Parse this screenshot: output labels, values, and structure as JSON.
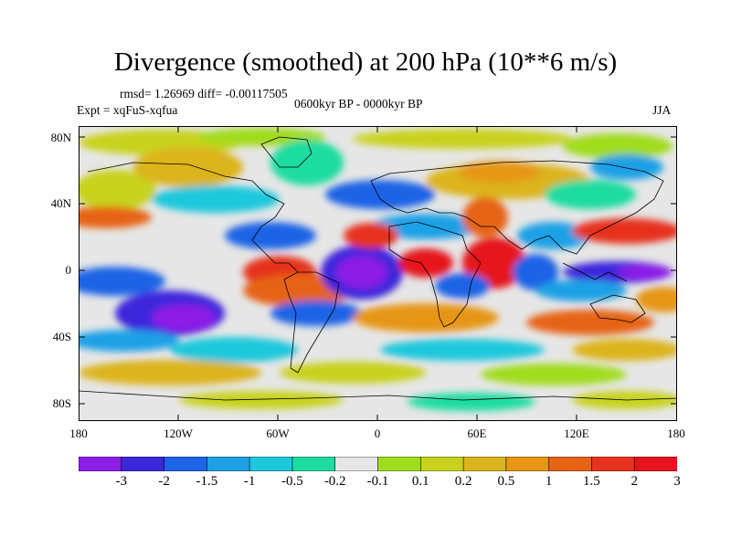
{
  "title": "Divergence (smoothed) at 200 hPa (10**6 m/s)",
  "stats": {
    "rmsd_line": "rmsd= 1.26969 diff= -0.00117505"
  },
  "experiment": "Expt = xqFuS-xqfua",
  "period": "0600kyr BP - 0000kyr BP",
  "season": "JJA",
  "lat_ticks": [
    "80N",
    "40N",
    "0",
    "40S",
    "80S"
  ],
  "lon_ticks": [
    "180",
    "120W",
    "60W",
    "0",
    "60E",
    "120E",
    "180"
  ],
  "colorbar": {
    "labels": [
      "-3",
      "-2",
      "-1.5",
      "-1",
      "-0.5",
      "-0.2",
      "-0.1",
      "0.1",
      "0.2",
      "0.5",
      "1",
      "1.5",
      "2",
      "3"
    ],
    "colors": [
      "#8c1ee6",
      "#3c28dc",
      "#1e64e6",
      "#1ea0e6",
      "#1ec8dc",
      "#1edca0",
      "#e6e6e6",
      "#a0dc1e",
      "#c8d21e",
      "#dcb41e",
      "#e69614",
      "#e66414",
      "#e6321e",
      "#e6141e"
    ]
  }
}
